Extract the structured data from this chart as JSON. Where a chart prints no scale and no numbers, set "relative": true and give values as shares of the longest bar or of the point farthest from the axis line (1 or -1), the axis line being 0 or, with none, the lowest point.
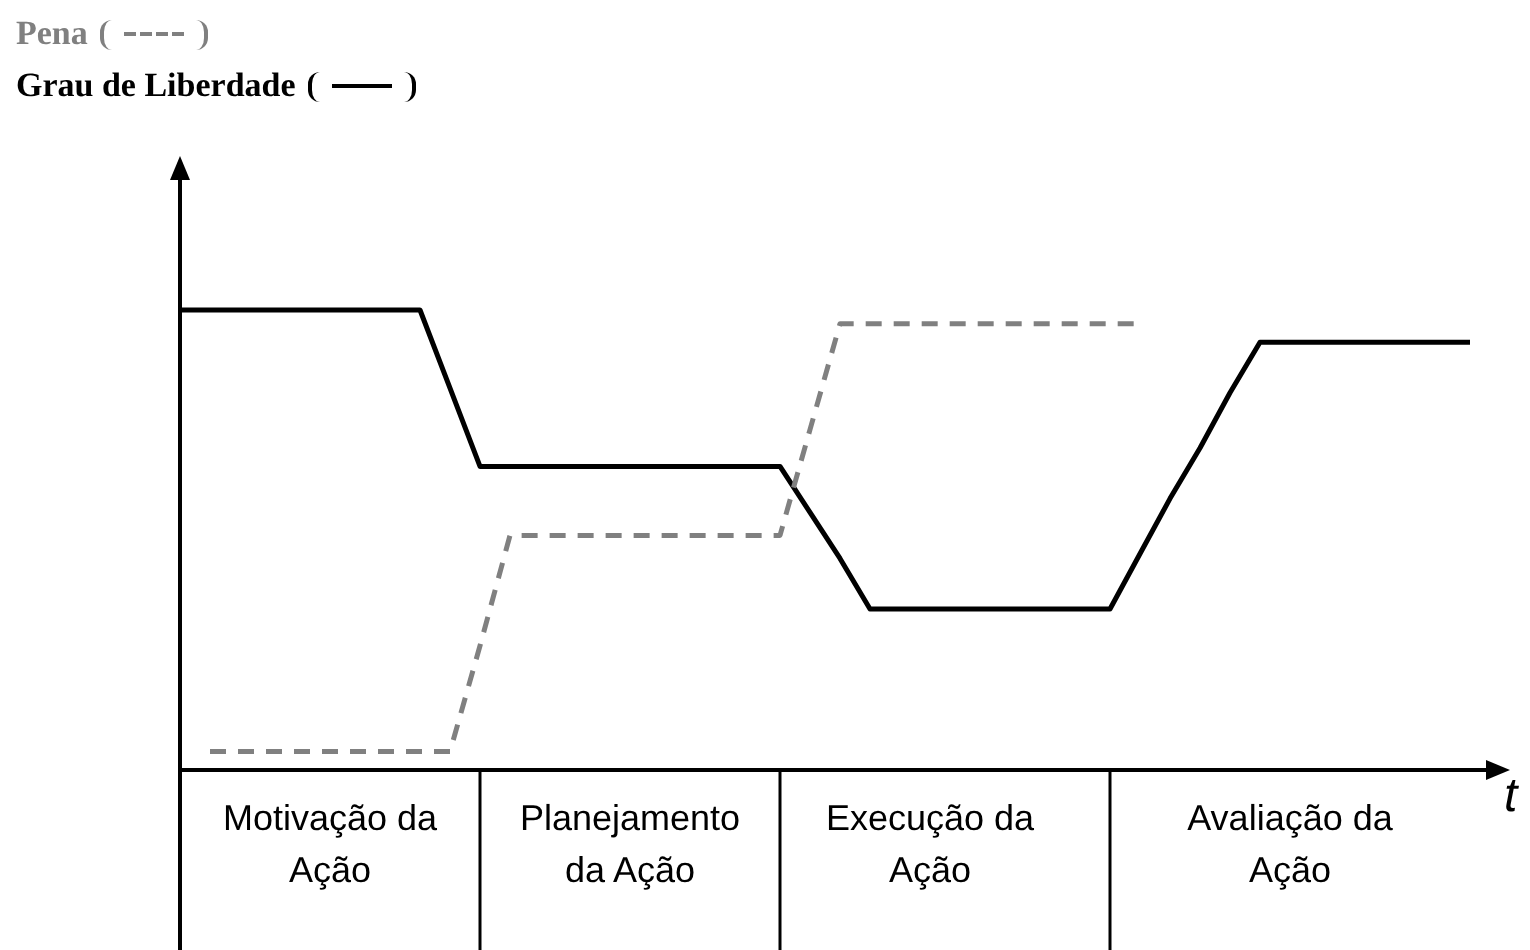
{
  "chart_data": {
    "type": "line",
    "relative": true,
    "xlabel": "t",
    "grid": false,
    "legend": "top left",
    "marker": "none",
    "categories": [
      null,
      null,
      null,
      null,
      null,
      "Motivação da Ação",
      null,
      null,
      null,
      null,
      null,
      null,
      null,
      null,
      null,
      "Planejamento da Ação",
      null,
      null,
      null,
      null,
      null,
      null,
      null,
      null,
      null,
      "Execução da Ação",
      null,
      null,
      null,
      null,
      null,
      null,
      null,
      null,
      null,
      null,
      null,
      "Avaliação da Ação",
      null,
      null,
      null,
      null,
      null,
      null,
      null
    ],
    "series": [
      {
        "name": "Pena",
        "color": "#808080",
        "line_style": "dashed",
        "values": [
          null,
          0.04,
          0.04,
          0.04,
          0.04,
          0.04,
          0.04,
          0.04,
          0.04,
          0.04,
          0.27,
          0.51,
          0.51,
          0.51,
          0.51,
          0.51,
          0.51,
          0.51,
          0.51,
          0.51,
          0.51,
          0.74,
          0.97,
          0.97,
          0.97,
          0.97,
          0.97,
          0.97,
          0.97,
          0.97,
          0.97,
          0.97,
          0.97,
          null,
          null,
          null,
          null,
          null,
          null,
          null,
          null,
          null,
          null,
          null,
          null
        ]
      },
      {
        "name": "Grau de Liberdade",
        "color": "#000000",
        "line_style": "solid",
        "values": [
          1,
          1,
          1,
          1,
          1,
          1,
          1,
          1,
          1,
          0.83,
          0.66,
          0.66,
          0.66,
          0.66,
          0.66,
          0.66,
          0.66,
          0.66,
          0.66,
          0.66,
          0.66,
          0.56,
          0.46,
          0.35,
          0.35,
          0.35,
          0.35,
          0.35,
          0.35,
          0.35,
          0.35,
          0.35,
          0.47,
          0.59,
          0.7,
          0.82,
          0.93,
          0.93,
          0.93,
          0.93,
          0.93,
          0.93,
          0.93,
          0.93,
          null
        ]
      }
    ]
  }
}
